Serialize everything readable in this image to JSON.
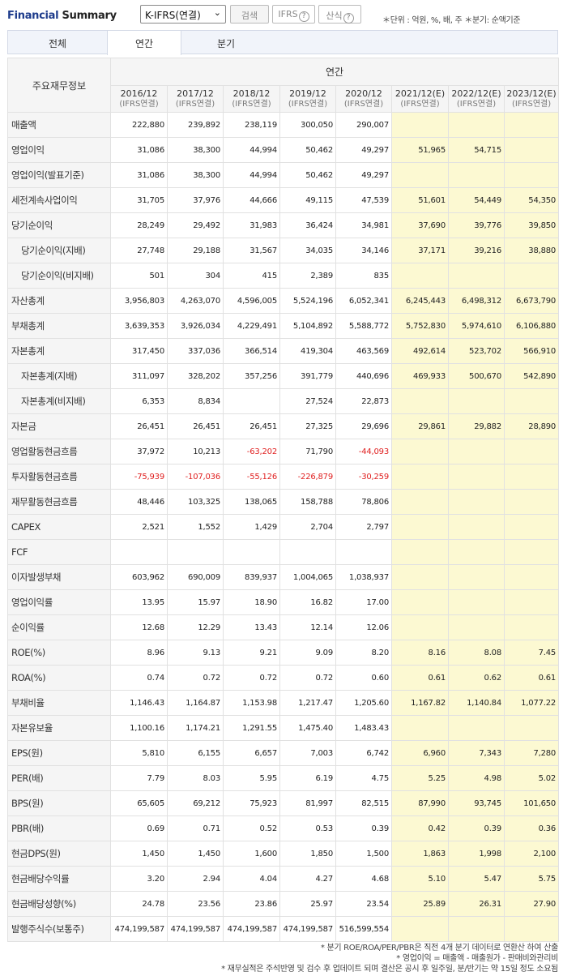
{
  "header": {
    "title_bold": "Financial",
    "title_light": "Summary",
    "select_value": "K-IFRS(연결)",
    "search_label": "검색",
    "ifrs_label": "IFRS",
    "calc_label": "산식",
    "help_glyph": "?",
    "units": "＊단위 : 억원, %, 배, 주   ＊분기: 순액기준"
  },
  "tabs": [
    "전체",
    "연간",
    "분기"
  ],
  "table": {
    "corner_label": "주요재무정보",
    "group_label": "연간",
    "columns": [
      {
        "period": "2016/12",
        "basis": "(IFRS연결)"
      },
      {
        "period": "2017/12",
        "basis": "(IFRS연결)"
      },
      {
        "period": "2018/12",
        "basis": "(IFRS연결)"
      },
      {
        "period": "2019/12",
        "basis": "(IFRS연결)"
      },
      {
        "period": "2020/12",
        "basis": "(IFRS연결)"
      },
      {
        "period": "2021/12(E)",
        "basis": "(IFRS연결)"
      },
      {
        "period": "2022/12(E)",
        "basis": "(IFRS연결)"
      },
      {
        "period": "2023/12(E)",
        "basis": "(IFRS연결)"
      }
    ],
    "rows": [
      {
        "label": "매출액",
        "indent": false,
        "values": [
          "222,880",
          "239,892",
          "238,119",
          "300,050",
          "290,007",
          "",
          "",
          ""
        ]
      },
      {
        "label": "영업이익",
        "indent": false,
        "values": [
          "31,086",
          "38,300",
          "44,994",
          "50,462",
          "49,297",
          "51,965",
          "54,715",
          ""
        ]
      },
      {
        "label": "영업이익(발표기준)",
        "indent": false,
        "values": [
          "31,086",
          "38,300",
          "44,994",
          "50,462",
          "49,297",
          "",
          "",
          ""
        ]
      },
      {
        "label": "세전계속사업이익",
        "indent": false,
        "values": [
          "31,705",
          "37,976",
          "44,666",
          "49,115",
          "47,539",
          "51,601",
          "54,449",
          "54,350"
        ]
      },
      {
        "label": "당기순이익",
        "indent": false,
        "values": [
          "28,249",
          "29,492",
          "31,983",
          "36,424",
          "34,981",
          "37,690",
          "39,776",
          "39,850"
        ]
      },
      {
        "label": "당기순이익(지배)",
        "indent": true,
        "values": [
          "27,748",
          "29,188",
          "31,567",
          "34,035",
          "34,146",
          "37,171",
          "39,216",
          "38,880"
        ]
      },
      {
        "label": "당기순이익(비지배)",
        "indent": true,
        "values": [
          "501",
          "304",
          "415",
          "2,389",
          "835",
          "",
          "",
          ""
        ]
      },
      {
        "label": "자산총계",
        "indent": false,
        "values": [
          "3,956,803",
          "4,263,070",
          "4,596,005",
          "5,524,196",
          "6,052,341",
          "6,245,443",
          "6,498,312",
          "6,673,790"
        ]
      },
      {
        "label": "부채총계",
        "indent": false,
        "values": [
          "3,639,353",
          "3,926,034",
          "4,229,491",
          "5,104,892",
          "5,588,772",
          "5,752,830",
          "5,974,610",
          "6,106,880"
        ]
      },
      {
        "label": "자본총계",
        "indent": false,
        "values": [
          "317,450",
          "337,036",
          "366,514",
          "419,304",
          "463,569",
          "492,614",
          "523,702",
          "566,910"
        ]
      },
      {
        "label": "자본총계(지배)",
        "indent": true,
        "values": [
          "311,097",
          "328,202",
          "357,256",
          "391,779",
          "440,696",
          "469,933",
          "500,670",
          "542,890"
        ]
      },
      {
        "label": "자본총계(비지배)",
        "indent": true,
        "values": [
          "6,353",
          "8,834",
          "",
          "27,524",
          "22,873",
          "",
          "",
          ""
        ]
      },
      {
        "label": "자본금",
        "indent": false,
        "values": [
          "26,451",
          "26,451",
          "26,451",
          "27,325",
          "29,696",
          "29,861",
          "29,882",
          "28,890"
        ]
      },
      {
        "label": "영업활동현금흐름",
        "indent": false,
        "values": [
          "37,972",
          "10,213",
          "-63,202",
          "71,790",
          "-44,093",
          "",
          "",
          ""
        ]
      },
      {
        "label": "투자활동현금흐름",
        "indent": false,
        "values": [
          "-75,939",
          "-107,036",
          "-55,126",
          "-226,879",
          "-30,259",
          "",
          "",
          ""
        ]
      },
      {
        "label": "재무활동현금흐름",
        "indent": false,
        "values": [
          "48,446",
          "103,325",
          "138,065",
          "158,788",
          "78,806",
          "",
          "",
          ""
        ]
      },
      {
        "label": "CAPEX",
        "indent": false,
        "values": [
          "2,521",
          "1,552",
          "1,429",
          "2,704",
          "2,797",
          "",
          "",
          ""
        ]
      },
      {
        "label": "FCF",
        "indent": false,
        "values": [
          "",
          "",
          "",
          "",
          "",
          "",
          "",
          ""
        ]
      },
      {
        "label": "이자발생부채",
        "indent": false,
        "values": [
          "603,962",
          "690,009",
          "839,937",
          "1,004,065",
          "1,038,937",
          "",
          "",
          ""
        ]
      },
      {
        "label": "영업이익률",
        "indent": false,
        "values": [
          "13.95",
          "15.97",
          "18.90",
          "16.82",
          "17.00",
          "",
          "",
          ""
        ]
      },
      {
        "label": "순이익률",
        "indent": false,
        "values": [
          "12.68",
          "12.29",
          "13.43",
          "12.14",
          "12.06",
          "",
          "",
          ""
        ]
      },
      {
        "label": "ROE(%)",
        "indent": false,
        "values": [
          "8.96",
          "9.13",
          "9.21",
          "9.09",
          "8.20",
          "8.16",
          "8.08",
          "7.45"
        ]
      },
      {
        "label": "ROA(%)",
        "indent": false,
        "values": [
          "0.74",
          "0.72",
          "0.72",
          "0.72",
          "0.60",
          "0.61",
          "0.62",
          "0.61"
        ]
      },
      {
        "label": "부채비율",
        "indent": false,
        "values": [
          "1,146.43",
          "1,164.87",
          "1,153.98",
          "1,217.47",
          "1,205.60",
          "1,167.82",
          "1,140.84",
          "1,077.22"
        ]
      },
      {
        "label": "자본유보율",
        "indent": false,
        "values": [
          "1,100.16",
          "1,174.21",
          "1,291.55",
          "1,475.40",
          "1,483.43",
          "",
          "",
          ""
        ]
      },
      {
        "label": "EPS(원)",
        "indent": false,
        "values": [
          "5,810",
          "6,155",
          "6,657",
          "7,003",
          "6,742",
          "6,960",
          "7,343",
          "7,280"
        ]
      },
      {
        "label": "PER(배)",
        "indent": false,
        "values": [
          "7.79",
          "8.03",
          "5.95",
          "6.19",
          "4.75",
          "5.25",
          "4.98",
          "5.02"
        ]
      },
      {
        "label": "BPS(원)",
        "indent": false,
        "values": [
          "65,605",
          "69,212",
          "75,923",
          "81,997",
          "82,515",
          "87,990",
          "93,745",
          "101,650"
        ]
      },
      {
        "label": "PBR(배)",
        "indent": false,
        "values": [
          "0.69",
          "0.71",
          "0.52",
          "0.53",
          "0.39",
          "0.42",
          "0.39",
          "0.36"
        ]
      },
      {
        "label": "현금DPS(원)",
        "indent": false,
        "values": [
          "1,450",
          "1,450",
          "1,600",
          "1,850",
          "1,500",
          "1,863",
          "1,998",
          "2,100"
        ]
      },
      {
        "label": "현금배당수익률",
        "indent": false,
        "values": [
          "3.20",
          "2.94",
          "4.04",
          "4.27",
          "4.68",
          "5.10",
          "5.47",
          "5.75"
        ]
      },
      {
        "label": "현금배당성향(%)",
        "indent": false,
        "values": [
          "24.78",
          "23.56",
          "23.86",
          "25.97",
          "23.54",
          "25.89",
          "26.31",
          "27.90"
        ]
      },
      {
        "label": "발행주식수(보통주)",
        "indent": false,
        "values": [
          "474,199,587",
          "474,199,587",
          "474,199,587",
          "474,199,587",
          "516,599,554",
          "",
          "",
          ""
        ]
      }
    ]
  },
  "notes": [
    "* 분기 ROE/ROA/PER/PBR은 직전 4개 분기 데이터로 연환산 하여 산출",
    "* 영업이익 = 매출액 - 매출원가 - 판매비와관리비",
    "* 재무실적은 주석반영 및 검수 후 업데이트 되며 결산은 공시 후 일주일, 분/반기는 약 15일 정도 소요됨"
  ],
  "colors": {
    "title": "#1e3c8c",
    "negative": "#e02020",
    "estimate_bg": "#fcf9d2",
    "header_bg": "#f5f5f5"
  }
}
